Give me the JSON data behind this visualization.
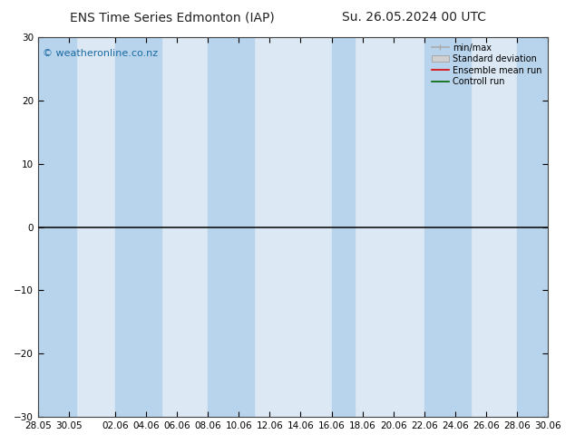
{
  "title_left": "ENS Time Series Edmonton (IAP)",
  "title_right": "Su. 26.05.2024 00 UTC",
  "ylim": [
    -30,
    30
  ],
  "yticks": [
    -30,
    -20,
    -10,
    0,
    10,
    20,
    30
  ],
  "x_tick_labels": [
    "28.05",
    "30.05",
    "02.06",
    "04.06",
    "06.06",
    "08.06",
    "10.06",
    "12.06",
    "14.06",
    "16.06",
    "18.06",
    "20.06",
    "22.06",
    "24.06",
    "26.06",
    "28.06",
    "30.06"
  ],
  "watermark": "© weatheronline.co.nz",
  "legend_labels": [
    "min/max",
    "Standard deviation",
    "Ensemble mean run",
    "Controll run"
  ],
  "bg_color": "#ffffff",
  "plot_bg_color": "#dce9f5",
  "band_color": "#b8d4ed",
  "zero_line_color": "#111111",
  "spine_color": "#444444",
  "title_fontsize": 10,
  "tick_fontsize": 7.5,
  "watermark_color": "#1a6aa0",
  "watermark_fontsize": 8,
  "legend_fontsize": 7,
  "minmax_color": "#aaaaaa",
  "std_color": "#cccccc",
  "ens_color": "#dd0000",
  "ctrl_color": "#006600"
}
